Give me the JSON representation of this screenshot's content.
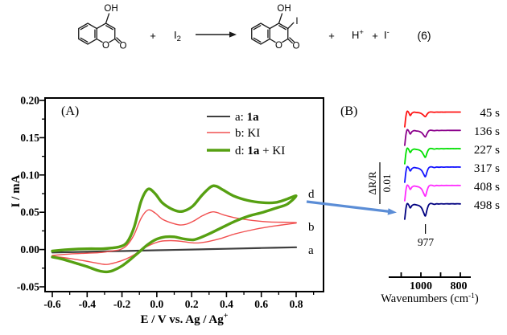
{
  "reaction": {
    "reactant": {
      "hydroxyl": "OH",
      "ring_oxygen": "O",
      "carbonyl_oxygen": "O"
    },
    "plus_1": "+",
    "reagent": {
      "base": "I",
      "subscript": "2"
    },
    "product": {
      "hydroxyl": "OH",
      "iodo": "I",
      "ring_oxygen": "O",
      "carbonyl_oxygen": "O"
    },
    "plus_2": "+",
    "proton": {
      "base": "H",
      "superscript": "+"
    },
    "plus_3": "+",
    "iodide": {
      "base": "I",
      "superscript": "-"
    },
    "equation_number": "(6)"
  },
  "panel_a": {
    "label": "(A)",
    "x_axis": {
      "title_base": "E / V vs. Ag / Ag",
      "title_sup": "+",
      "tick_labels": [
        "-0.6",
        "-0.4",
        "-0.2",
        "0.0",
        "0.2",
        "0.4",
        "0.6",
        "0.8"
      ],
      "tick_values": [
        -0.6,
        -0.4,
        -0.2,
        0.0,
        0.2,
        0.4,
        0.6,
        0.8
      ],
      "minor_tick_values": [
        -0.5,
        -0.3,
        -0.1,
        0.1,
        0.3,
        0.5,
        0.7,
        0.9
      ]
    },
    "y_axis": {
      "title": "I / mA",
      "tick_labels": [
        "-0.05",
        "0.00",
        "0.05",
        "0.10",
        "0.15",
        "0.20"
      ],
      "tick_values": [
        -0.05,
        0.0,
        0.05,
        0.1,
        0.15,
        0.2
      ],
      "minor_tick_values": [
        -0.025,
        0.025,
        0.075,
        0.125,
        0.175
      ]
    },
    "legend": [
      {
        "pre": "a: ",
        "bold": "1a",
        "post": ""
      },
      {
        "pre": "b: ",
        "bold": "",
        "post": "KI"
      },
      {
        "pre": "d: ",
        "bold": "1a",
        "post": " + KI"
      }
    ],
    "curve_labels": {
      "d": "d",
      "b": "b",
      "a": "a"
    }
  },
  "panel_b": {
    "label": "(B)",
    "scale_bar": {
      "numerator": "ΔR/R",
      "denominator": "0.01"
    },
    "band_annotation": "977",
    "x_axis": {
      "title_base": "Wavenumbers (cm",
      "title_sup": "-1",
      "title_close": ")",
      "tick_labels": [
        "1000",
        "800"
      ],
      "tick_values": [
        1000,
        800
      ],
      "minor_tick_values": [
        1100,
        900
      ]
    }
  },
  "chart_data": [
    {
      "type": "line",
      "title": "(A) Cyclic voltammograms",
      "xlabel": "E / V vs. Ag / Ag+",
      "ylabel": "I / mA",
      "xlim": [
        -0.65,
        0.96
      ],
      "ylim": [
        -0.055,
        0.205
      ],
      "grid": false,
      "legend_position": "upper right",
      "series": [
        {
          "name": "a: 1a",
          "color": "#3f3f3f",
          "stroke_width": 2.2,
          "points": [
            [
              -0.6,
              -0.004
            ],
            [
              -0.4,
              -0.003
            ],
            [
              -0.2,
              -0.002
            ],
            [
              0.0,
              -0.001
            ],
            [
              0.2,
              0.0
            ],
            [
              0.4,
              0.001
            ],
            [
              0.6,
              0.002
            ],
            [
              0.8,
              0.003
            ]
          ]
        },
        {
          "name": "b: KI",
          "color": "#f15050",
          "stroke_width": 1.4,
          "points": [
            [
              -0.6,
              -0.008
            ],
            [
              -0.5,
              -0.006
            ],
            [
              -0.4,
              -0.005
            ],
            [
              -0.32,
              -0.004
            ],
            [
              -0.26,
              -0.002
            ],
            [
              -0.21,
              0.0
            ],
            [
              -0.17,
              0.006
            ],
            [
              -0.13,
              0.02
            ],
            [
              -0.09,
              0.042
            ],
            [
              -0.05,
              0.053
            ],
            [
              -0.01,
              0.049
            ],
            [
              0.03,
              0.041
            ],
            [
              0.08,
              0.036
            ],
            [
              0.13,
              0.033
            ],
            [
              0.17,
              0.034
            ],
            [
              0.21,
              0.038
            ],
            [
              0.26,
              0.045
            ],
            [
              0.31,
              0.05
            ],
            [
              0.34,
              0.05
            ],
            [
              0.39,
              0.046
            ],
            [
              0.46,
              0.042
            ],
            [
              0.55,
              0.039
            ],
            [
              0.65,
              0.037
            ],
            [
              0.8,
              0.036
            ],
            [
              0.72,
              0.033
            ],
            [
              0.63,
              0.03
            ],
            [
              0.54,
              0.026
            ],
            [
              0.45,
              0.021
            ],
            [
              0.37,
              0.015
            ],
            [
              0.3,
              0.011
            ],
            [
              0.25,
              0.009
            ],
            [
              0.2,
              0.009
            ],
            [
              0.14,
              0.011
            ],
            [
              0.08,
              0.012
            ],
            [
              0.02,
              0.011
            ],
            [
              -0.03,
              0.007
            ],
            [
              -0.08,
              0.001
            ],
            [
              -0.13,
              -0.007
            ],
            [
              -0.18,
              -0.013
            ],
            [
              -0.23,
              -0.017
            ],
            [
              -0.29,
              -0.02
            ],
            [
              -0.35,
              -0.018
            ],
            [
              -0.42,
              -0.015
            ],
            [
              -0.5,
              -0.012
            ],
            [
              -0.6,
              -0.009
            ]
          ]
        },
        {
          "name": "d: 1a + KI",
          "color": "#56a012",
          "stroke_width": 3.4,
          "points": [
            [
              -0.6,
              -0.002
            ],
            [
              -0.5,
              0.0
            ],
            [
              -0.4,
              0.001
            ],
            [
              -0.32,
              0.001
            ],
            [
              -0.26,
              0.002
            ],
            [
              -0.21,
              0.004
            ],
            [
              -0.17,
              0.01
            ],
            [
              -0.13,
              0.03
            ],
            [
              -0.09,
              0.065
            ],
            [
              -0.05,
              0.081
            ],
            [
              -0.01,
              0.075
            ],
            [
              0.03,
              0.063
            ],
            [
              0.08,
              0.055
            ],
            [
              0.13,
              0.051
            ],
            [
              0.17,
              0.053
            ],
            [
              0.21,
              0.059
            ],
            [
              0.26,
              0.073
            ],
            [
              0.31,
              0.084
            ],
            [
              0.34,
              0.085
            ],
            [
              0.38,
              0.08
            ],
            [
              0.44,
              0.072
            ],
            [
              0.52,
              0.066
            ],
            [
              0.6,
              0.063
            ],
            [
              0.68,
              0.063
            ],
            [
              0.74,
              0.067
            ],
            [
              0.8,
              0.072
            ],
            [
              0.75,
              0.061
            ],
            [
              0.69,
              0.056
            ],
            [
              0.61,
              0.05
            ],
            [
              0.53,
              0.045
            ],
            [
              0.45,
              0.038
            ],
            [
              0.37,
              0.029
            ],
            [
              0.3,
              0.021
            ],
            [
              0.25,
              0.016
            ],
            [
              0.21,
              0.013
            ],
            [
              0.16,
              0.014
            ],
            [
              0.1,
              0.017
            ],
            [
              0.05,
              0.017
            ],
            [
              0.0,
              0.014
            ],
            [
              -0.05,
              0.007
            ],
            [
              -0.1,
              -0.003
            ],
            [
              -0.15,
              -0.013
            ],
            [
              -0.2,
              -0.022
            ],
            [
              -0.25,
              -0.028
            ],
            [
              -0.29,
              -0.03
            ],
            [
              -0.34,
              -0.028
            ],
            [
              -0.4,
              -0.023
            ],
            [
              -0.47,
              -0.018
            ],
            [
              -0.54,
              -0.013
            ],
            [
              -0.6,
              -0.01
            ]
          ]
        }
      ]
    },
    {
      "type": "line",
      "title": "(B) Time-resolved IR difference spectra",
      "xlabel": "Wavenumbers (cm-1)",
      "xlim": [
        1085,
        795
      ],
      "x_reversed": true,
      "band_marker_wavenumber": 977,
      "scale_bar_dR_R": 0.01,
      "wavenumbers": [
        1082,
        1076,
        1070,
        1062,
        1054,
        1046,
        1036,
        1024,
        1008,
        996,
        986,
        977,
        969,
        961,
        952,
        942,
        932,
        920,
        908,
        896,
        884,
        870,
        856,
        842,
        828,
        814,
        800
      ],
      "edge_component": [
        -1.3,
        -0.35,
        0.1,
        0.0,
        -0.28,
        -0.08,
        0.03,
        0.0,
        0.0,
        0.0,
        0.0,
        0.0,
        0.0,
        0.0,
        0.0,
        0.0,
        0.0,
        0.0,
        0.0,
        0.0,
        0.0,
        0.0,
        0.0,
        0.0,
        0.0,
        0.0,
        0.0
      ],
      "band_component": [
        0,
        0,
        0,
        0,
        0,
        0,
        0,
        0,
        -0.08,
        -0.3,
        -0.7,
        -1.0,
        -0.45,
        -0.02,
        0.12,
        0.1,
        0.04,
        0.1,
        0.07,
        0.1,
        0.08,
        0.1,
        0.09,
        0.1,
        0.09,
        0.1,
        0.09
      ],
      "edge_amplitude_dR_R": 0.012,
      "series": [
        {
          "name": "45 s",
          "color": "#ff1414",
          "band_depth_dR_R": 0.0045
        },
        {
          "name": "136 s",
          "color": "#8b008b",
          "band_depth_dR_R": 0.0065
        },
        {
          "name": "227 s",
          "color": "#00e000",
          "band_depth_dR_R": 0.0085
        },
        {
          "name": "317 s",
          "color": "#1414ff",
          "band_depth_dR_R": 0.0095
        },
        {
          "name": "408 s",
          "color": "#ff2bff",
          "band_depth_dR_R": 0.0105
        },
        {
          "name": "498 s",
          "color": "#000080",
          "band_depth_dR_R": 0.012
        }
      ]
    }
  ]
}
